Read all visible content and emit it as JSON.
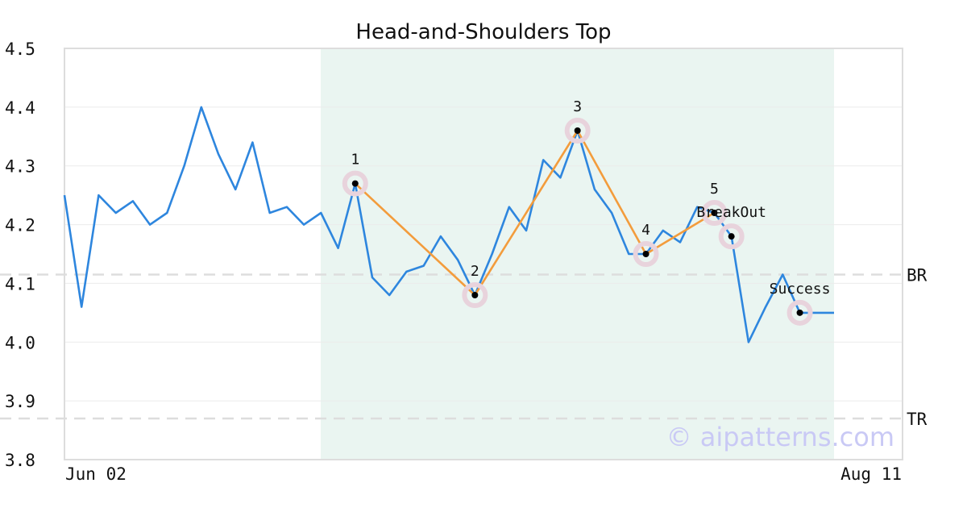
{
  "chart_data": {
    "type": "line",
    "title": "Head-and-Shoulders Top",
    "xlabel": "",
    "ylabel": "",
    "ylim": [
      3.8,
      4.5
    ],
    "yticks": [
      "4.5",
      "4.4",
      "4.3",
      "4.2",
      "4.1",
      "4.0",
      "3.9",
      "3.8"
    ],
    "x_tick_labels": [
      "Jun 02",
      "Aug 11"
    ],
    "grid": true,
    "watermark": "© aipatterns.com",
    "colors": {
      "price": "#2e86de",
      "pattern": "#f39c3c",
      "highlight": "#eaf5f1",
      "marker_halo": "#e8d3dc",
      "reference": "#dddddd"
    },
    "price": [
      4.25,
      4.06,
      4.25,
      4.22,
      4.24,
      4.2,
      4.22,
      4.3,
      4.4,
      4.32,
      4.26,
      4.34,
      4.22,
      4.23,
      4.2,
      4.22,
      4.16,
      4.27,
      4.11,
      4.08,
      4.12,
      4.13,
      4.18,
      4.14,
      4.08,
      4.15,
      4.23,
      4.19,
      4.31,
      4.28,
      4.36,
      4.26,
      4.22,
      4.15,
      4.15,
      4.19,
      4.17,
      4.23,
      4.22,
      4.18,
      4.0,
      4.06,
      4.115,
      4.05,
      4.05,
      4.05
    ],
    "pattern_region": [
      15,
      45
    ],
    "pattern_points": [
      {
        "label": "1",
        "index": 17,
        "value": 4.27
      },
      {
        "label": "2",
        "index": 24,
        "value": 4.08
      },
      {
        "label": "3",
        "index": 30,
        "value": 4.36
      },
      {
        "label": "4",
        "index": 34,
        "value": 4.15
      },
      {
        "label": "5",
        "index": 38,
        "value": 4.22
      }
    ],
    "events": [
      {
        "label": "BreakOut",
        "index": 39,
        "value": 4.18
      },
      {
        "label": "Success",
        "index": 43,
        "value": 4.05
      }
    ],
    "reference_lines": [
      {
        "label": "BR",
        "value": 4.115
      },
      {
        "label": "TR",
        "value": 3.87
      }
    ]
  }
}
